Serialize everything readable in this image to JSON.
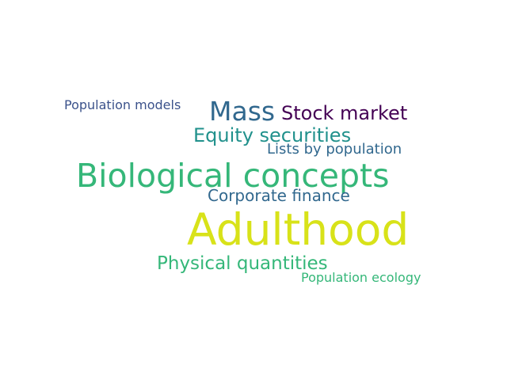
{
  "words": [
    {
      "text": "Population models",
      "color": "#3b528b"
    },
    {
      "text": "Mass",
      "color": "#31688e"
    },
    {
      "text": "Stock market",
      "color": "#440154"
    },
    {
      "text": "Equity securities",
      "color": "#21918c"
    },
    {
      "text": "Lists by population",
      "color": "#31688e"
    },
    {
      "text": "Biological concepts",
      "color": "#35b779"
    },
    {
      "text": "Corporate finance",
      "color": "#31688e"
    },
    {
      "text": "Adulthood",
      "color": "#d8e219"
    },
    {
      "text": "Physical quantities",
      "color": "#35b779"
    },
    {
      "text": "Population ecology",
      "color": "#35b779"
    }
  ]
}
